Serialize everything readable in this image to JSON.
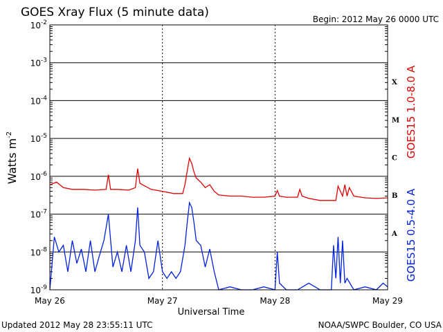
{
  "header": {
    "title": "GOES Xray Flux (5 minute data)",
    "begin": "Begin:  2012 May 26 0000 UTC"
  },
  "footer": {
    "updated": "Updated 2012 May 28 23:55:11 UTC",
    "credit": "NOAA/SWPC Boulder, CO USA"
  },
  "chart_data": {
    "type": "line",
    "title": "GOES Xray Flux (5 minute data)",
    "xlabel": "Universal Time",
    "ylabel": "Watts m",
    "ylabel_sup": "-2",
    "y_scale": "log",
    "ylim": [
      1e-09,
      0.01
    ],
    "x_unit": "days since 2012 May 26 0000 UTC",
    "xlim": [
      0,
      3
    ],
    "x_tick_labels": [
      "May 26",
      "May 27",
      "May 28",
      "May 29"
    ],
    "y_ticks": [
      {
        "base": "10",
        "exp": "-9"
      },
      {
        "base": "10",
        "exp": "-8"
      },
      {
        "base": "10",
        "exp": "-7"
      },
      {
        "base": "10",
        "exp": "-6"
      },
      {
        "base": "10",
        "exp": "-5"
      },
      {
        "base": "10",
        "exp": "-4"
      },
      {
        "base": "10",
        "exp": "-3"
      },
      {
        "base": "10",
        "exp": "-2"
      }
    ],
    "flare_classes": [
      {
        "label": "A",
        "level": 1e-08
      },
      {
        "label": "B",
        "level": 1e-07
      },
      {
        "label": "C",
        "level": 1e-06
      },
      {
        "label": "M",
        "level": 1e-05
      },
      {
        "label": "X",
        "level": 0.0001
      }
    ],
    "grid": true,
    "series": [
      {
        "name": "GOES15 1.0-8.0 A",
        "color": "#e00000",
        "x": [
          0.0,
          0.06,
          0.12,
          0.2,
          0.3,
          0.4,
          0.5,
          0.52,
          0.54,
          0.6,
          0.7,
          0.76,
          0.78,
          0.8,
          0.9,
          1.0,
          1.1,
          1.18,
          1.2,
          1.22,
          1.24,
          1.26,
          1.28,
          1.3,
          1.34,
          1.38,
          1.42,
          1.46,
          1.5,
          1.6,
          1.7,
          1.8,
          1.9,
          2.0,
          2.02,
          2.04,
          2.1,
          2.2,
          2.22,
          2.24,
          2.3,
          2.4,
          2.5,
          2.54,
          2.56,
          2.6,
          2.62,
          2.64,
          2.66,
          2.7,
          2.8,
          2.9,
          3.0
        ],
        "y": [
          6e-07,
          7e-07,
          5e-07,
          4.5e-07,
          4.5e-07,
          4.3e-07,
          4.5e-07,
          1.1e-06,
          4.5e-07,
          4.5e-07,
          4.3e-07,
          5e-07,
          1.6e-06,
          6.5e-07,
          4.5e-07,
          4e-07,
          3.5e-07,
          3.5e-07,
          6e-07,
          1.4e-06,
          3e-06,
          2.2e-06,
          1.3e-06,
          9e-07,
          7e-07,
          5e-07,
          6e-07,
          4e-07,
          3.2e-07,
          3e-07,
          3e-07,
          2.8e-07,
          2.8e-07,
          3e-07,
          4.2e-07,
          3e-07,
          2.8e-07,
          2.8e-07,
          4.5e-07,
          3e-07,
          2.6e-07,
          2.3e-07,
          2.3e-07,
          2.3e-07,
          5.5e-07,
          3e-07,
          6e-07,
          3e-07,
          5e-07,
          3e-07,
          2.7e-07,
          2.6e-07,
          2.7e-07
        ]
      },
      {
        "name": "GOES15 0.5-4.0 A",
        "color": "#0020e0",
        "x": [
          0.0,
          0.04,
          0.08,
          0.12,
          0.16,
          0.2,
          0.24,
          0.28,
          0.32,
          0.36,
          0.4,
          0.44,
          0.48,
          0.52,
          0.56,
          0.6,
          0.64,
          0.68,
          0.72,
          0.76,
          0.78,
          0.8,
          0.84,
          0.88,
          0.92,
          0.96,
          1.0,
          1.04,
          1.08,
          1.12,
          1.16,
          1.2,
          1.22,
          1.24,
          1.26,
          1.28,
          1.3,
          1.34,
          1.38,
          1.42,
          1.46,
          1.5,
          1.6,
          1.7,
          1.8,
          1.9,
          2.0,
          2.02,
          2.04,
          2.1,
          2.2,
          2.3,
          2.4,
          2.5,
          2.52,
          2.54,
          2.56,
          2.58,
          2.6,
          2.62,
          2.64,
          2.7,
          2.8,
          2.9,
          2.96,
          3.0
        ],
        "y": [
          1e-09,
          2.5e-08,
          1e-08,
          1.5e-08,
          3e-09,
          2e-08,
          5e-09,
          1.2e-08,
          3e-09,
          2e-08,
          3e-09,
          8e-09,
          2e-08,
          1e-07,
          4e-09,
          1e-08,
          3e-09,
          1.5e-08,
          3e-09,
          2e-08,
          1.5e-07,
          1.5e-08,
          1e-08,
          2e-09,
          3e-09,
          2e-08,
          3e-09,
          2e-09,
          3e-09,
          2e-09,
          3e-09,
          1.5e-08,
          6e-08,
          2e-07,
          1.5e-07,
          6e-08,
          2e-08,
          1.5e-08,
          4e-09,
          1.2e-08,
          3e-09,
          1e-09,
          1.2e-09,
          1e-09,
          1e-09,
          1.2e-09,
          1e-09,
          1e-08,
          1.5e-09,
          1e-09,
          1e-09,
          1.5e-09,
          1e-09,
          1e-09,
          1.5e-08,
          2e-09,
          2.5e-08,
          1.5e-09,
          2e-08,
          1.5e-09,
          2e-09,
          1e-09,
          1.2e-09,
          1e-09,
          1.5e-09,
          1.2e-09
        ]
      }
    ]
  }
}
